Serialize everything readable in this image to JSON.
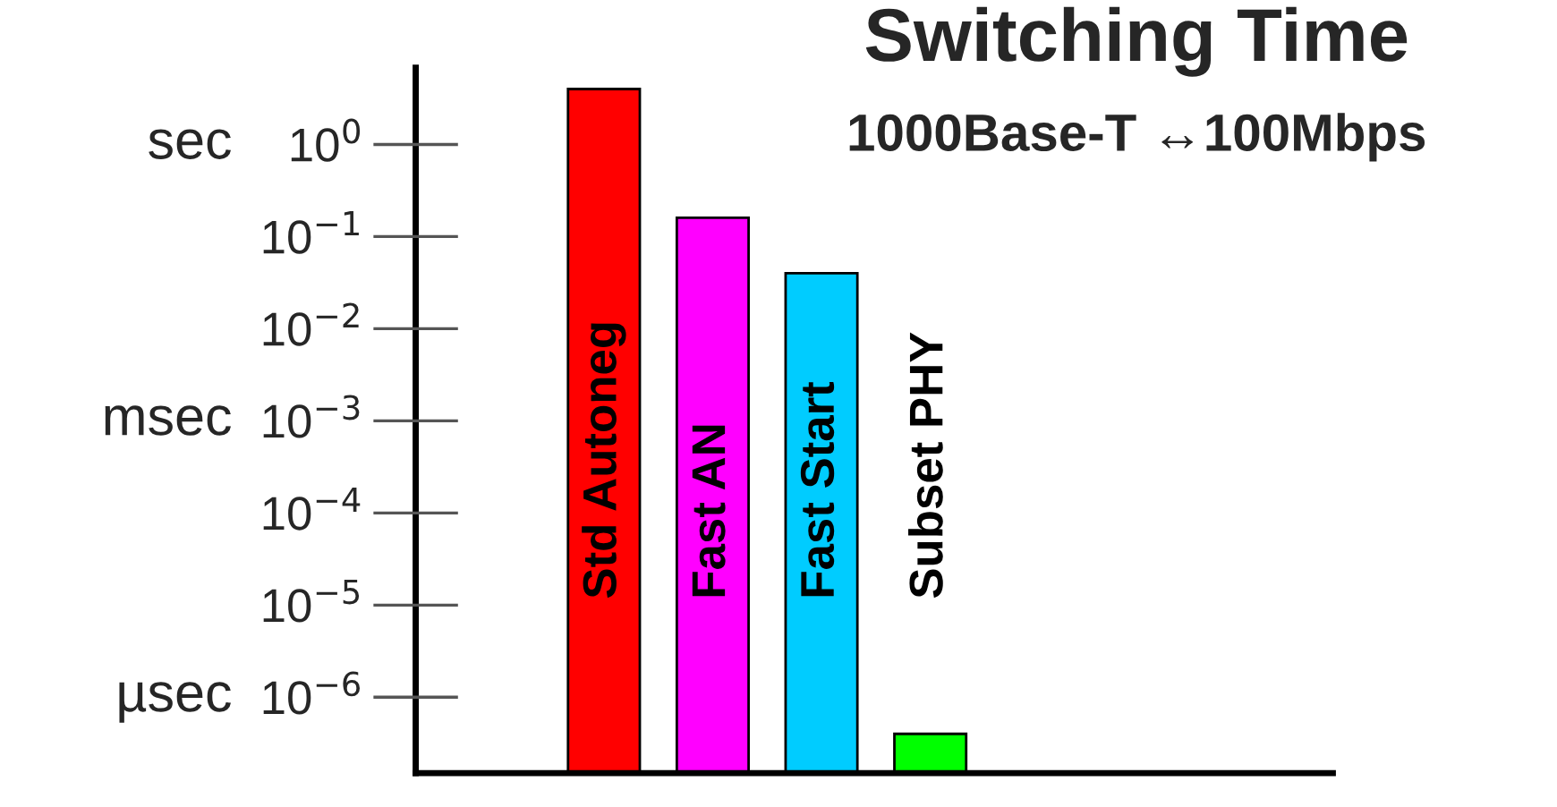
{
  "chart_data": {
    "type": "bar",
    "title": "Switching Time",
    "subtitle": "1000Base-T ↔100Mbps",
    "categories": [
      "Std Autoneg",
      "Fast AN",
      "Fast Start",
      "Subset PHY"
    ],
    "values": [
      4,
      0.16,
      0.04,
      4e-07
    ],
    "colors": [
      "#ff0000",
      "#ff00ff",
      "#00ccff",
      "#00ff00"
    ],
    "log": "y",
    "ylim": [
      1.5e-07,
      6.8
    ],
    "yticks": [
      {
        "value": 1,
        "label": "10$^{0}$"
      },
      {
        "value": 0.1,
        "label": "10$^{−1}$"
      },
      {
        "value": 0.01,
        "label": "10$^{−2}$"
      },
      {
        "value": 0.001,
        "label": "10$^{−3}$"
      },
      {
        "value": 0.0001,
        "label": "10$^{−4}$"
      },
      {
        "value": 1e-05,
        "label": "10$^{−5}$"
      },
      {
        "value": 1e-06,
        "label": "10$^{−6}$"
      }
    ],
    "annotations": [
      "sec",
      "msec",
      "µsec"
    ],
    "grid": false,
    "legend": false
  }
}
